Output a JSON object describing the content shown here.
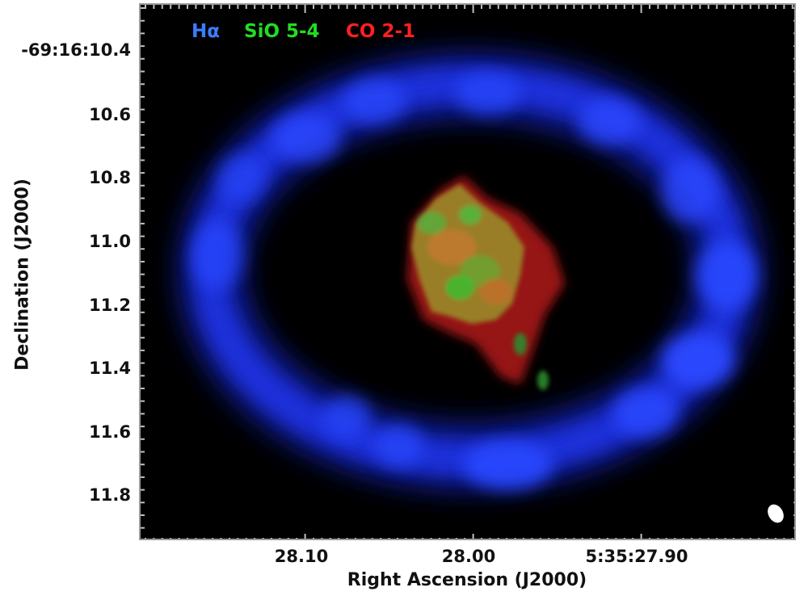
{
  "figure": {
    "xlabel": "Right Ascension (J2000)",
    "ylabel": "Declination (J2000)",
    "y_ticks": [
      "-69:16:10.4",
      "10.6",
      "10.8",
      "11.0",
      "11.2",
      "11.4",
      "11.6",
      "11.8"
    ],
    "x_ticks": [
      "28.10",
      "28.00",
      "5:35:27.90"
    ],
    "legend": [
      {
        "label": "Hα",
        "color": "#3b7dff"
      },
      {
        "label": "SiO 5-4",
        "color": "#22dd22"
      },
      {
        "label": "CO 2-1",
        "color": "#ff2020"
      }
    ],
    "colors": {
      "ring": "#1a30ff",
      "background": "#000000",
      "beam": "#ffffff"
    }
  }
}
